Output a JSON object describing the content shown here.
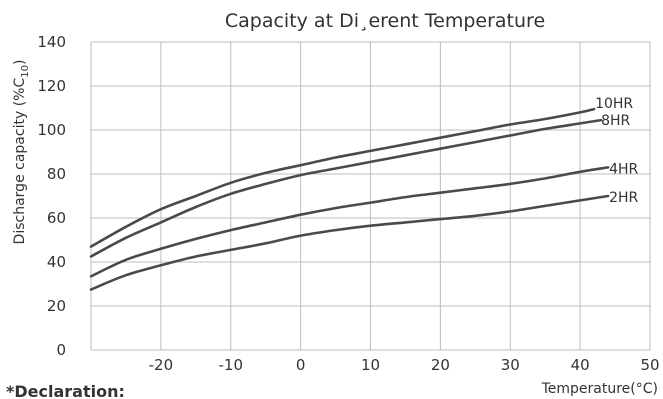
{
  "chart_data": {
    "type": "line",
    "title": "Capacity at Di¸erent Temperature",
    "xlabel": "Temperature(°C)",
    "ylabel": "Discharge capacity (%C",
    "ylabel_subscript": "10",
    "ylabel_suffix": ")",
    "xlim": [
      -30,
      50
    ],
    "ylim": [
      0,
      140
    ],
    "xticks": [
      -20,
      -10,
      0,
      10,
      20,
      30,
      40,
      50
    ],
    "yticks": [
      0,
      20,
      40,
      60,
      80,
      100,
      120,
      140
    ],
    "grid": true,
    "legend": "none",
    "series": [
      {
        "name": "10HR",
        "x": [
          -30,
          -25,
          -20,
          -15,
          -10,
          -5,
          0,
          5,
          10,
          15,
          20,
          25,
          30,
          35,
          40,
          42
        ],
        "y": [
          47,
          56,
          64,
          70,
          76,
          80.5,
          84,
          87.5,
          90.5,
          93.5,
          96.5,
          99.5,
          102.5,
          105,
          108,
          109.5
        ]
      },
      {
        "name": "8HR",
        "x": [
          -30,
          -25,
          -20,
          -15,
          -10,
          -5,
          0,
          5,
          10,
          15,
          20,
          25,
          30,
          35,
          40,
          43
        ],
        "y": [
          42.5,
          51,
          58,
          65,
          71,
          75.5,
          79.5,
          82.5,
          85.5,
          88.5,
          91.5,
          94.5,
          97.5,
          100.5,
          103,
          104.5
        ]
      },
      {
        "name": "4HR",
        "x": [
          -30,
          -25,
          -20,
          -15,
          -10,
          -5,
          0,
          5,
          10,
          15,
          20,
          25,
          30,
          35,
          40,
          44
        ],
        "y": [
          33.5,
          41,
          46,
          50.5,
          54.5,
          58,
          61.5,
          64.5,
          67,
          69.5,
          71.5,
          73.5,
          75.5,
          78,
          81,
          83
        ]
      },
      {
        "name": "2HR",
        "x": [
          -30,
          -25,
          -20,
          -15,
          -10,
          -5,
          0,
          5,
          10,
          15,
          20,
          25,
          30,
          35,
          40,
          44
        ],
        "y": [
          27.5,
          34,
          38.5,
          42.5,
          45.5,
          48.5,
          52,
          54.5,
          56.5,
          58,
          59.5,
          61,
          63,
          65.5,
          68,
          70
        ]
      }
    ],
    "footer_text": "*Declaration:",
    "colors": {
      "line": "#4a4a4a",
      "grid": "#bdbdbd",
      "text": "#333333"
    }
  }
}
